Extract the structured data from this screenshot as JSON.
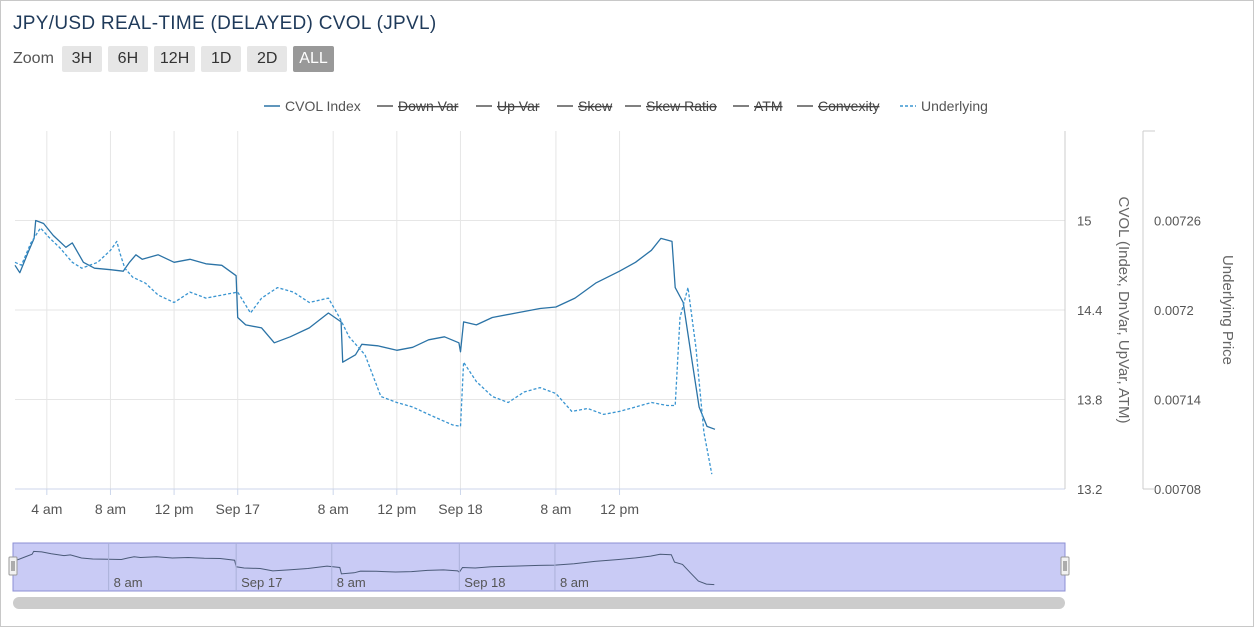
{
  "title": "JPY/USD REAL-TIME (DELAYED) CVOL (JPVL)",
  "zoom": {
    "label": "Zoom",
    "buttons": [
      "3H",
      "6H",
      "12H",
      "1D",
      "2D",
      "ALL"
    ],
    "selected": "ALL"
  },
  "colors": {
    "cvol": "#2b73a6",
    "underlying": "#3a95d1",
    "grid": "#e6e6e6",
    "navigator_fill": "#c9cbf5",
    "hidden_series": "#555555"
  },
  "chart_data": {
    "type": "line",
    "title": "JPY/USD REAL-TIME (DELAYED) CVOL (JPVL)",
    "x_unit": "hours",
    "x_range": [
      0,
      66
    ],
    "x_ticks": [
      {
        "x": 2,
        "label": "4 am"
      },
      {
        "x": 6,
        "label": "8 am"
      },
      {
        "x": 10,
        "label": "12 pm"
      },
      {
        "x": 14,
        "label": "Sep 17"
      },
      {
        "x": 20,
        "label": "8 am"
      },
      {
        "x": 24,
        "label": "12 pm"
      },
      {
        "x": 28,
        "label": "Sep 18"
      },
      {
        "x": 34,
        "label": "8 am"
      },
      {
        "x": 38,
        "label": "12 pm"
      }
    ],
    "y_left": {
      "label": "CVOL (Index, DnVar, UpVar, ATM)",
      "range": [
        13.2,
        15.6
      ],
      "ticks": [
        13.2,
        13.8,
        14.4,
        15
      ]
    },
    "y_right": {
      "label": "Underlying Price",
      "range": [
        0.00708,
        0.00732
      ],
      "ticks": [
        "0.00708",
        "0.00714",
        "0.0072",
        "0.00726"
      ]
    },
    "legend": {
      "placement": "top",
      "entries": [
        {
          "name": "CVOL Index",
          "visible": true,
          "dashed": false
        },
        {
          "name": "Down Var",
          "visible": false,
          "dashed": false
        },
        {
          "name": "Up Var",
          "visible": false,
          "dashed": false
        },
        {
          "name": "Skew",
          "visible": false,
          "dashed": false
        },
        {
          "name": "Skew Ratio",
          "visible": false,
          "dashed": false
        },
        {
          "name": "ATM",
          "visible": false,
          "dashed": false
        },
        {
          "name": "Convexity",
          "visible": false,
          "dashed": false
        },
        {
          "name": "Underlying",
          "visible": true,
          "dashed": true
        }
      ]
    },
    "series": [
      {
        "name": "CVOL Index",
        "axis": "left",
        "points": [
          [
            0,
            14.7
          ],
          [
            0.3,
            14.65
          ],
          [
            0.8,
            14.78
          ],
          [
            1.2,
            14.88
          ],
          [
            1.3,
            15.0
          ],
          [
            1.8,
            14.98
          ],
          [
            2.4,
            14.9
          ],
          [
            3.2,
            14.82
          ],
          [
            3.6,
            14.85
          ],
          [
            4.3,
            14.72
          ],
          [
            5,
            14.68
          ],
          [
            6,
            14.67
          ],
          [
            6.8,
            14.66
          ],
          [
            7.2,
            14.72
          ],
          [
            7.6,
            14.77
          ],
          [
            8,
            14.74
          ],
          [
            9,
            14.77
          ],
          [
            10,
            14.72
          ],
          [
            11,
            14.74
          ],
          [
            12,
            14.71
          ],
          [
            13,
            14.7
          ],
          [
            13.9,
            14.63
          ],
          [
            14,
            14.35
          ],
          [
            14.5,
            14.3
          ],
          [
            15.5,
            14.28
          ],
          [
            16.3,
            14.18
          ],
          [
            17.3,
            14.22
          ],
          [
            18.5,
            14.28
          ],
          [
            19.7,
            14.38
          ],
          [
            20.5,
            14.32
          ],
          [
            20.6,
            14.05
          ],
          [
            21.4,
            14.1
          ],
          [
            21.8,
            14.17
          ],
          [
            22.8,
            14.16
          ],
          [
            24,
            14.13
          ],
          [
            25,
            14.15
          ],
          [
            26,
            14.2
          ],
          [
            27,
            14.22
          ],
          [
            27.9,
            14.18
          ],
          [
            28,
            14.12
          ],
          [
            28.2,
            14.32
          ],
          [
            29,
            14.3
          ],
          [
            30,
            14.35
          ],
          [
            31.5,
            14.38
          ],
          [
            33,
            14.41
          ],
          [
            34,
            14.42
          ],
          [
            35.2,
            14.48
          ],
          [
            36.5,
            14.58
          ],
          [
            38,
            14.66
          ],
          [
            39,
            14.72
          ],
          [
            40,
            14.8
          ],
          [
            40.6,
            14.88
          ],
          [
            41.3,
            14.86
          ],
          [
            41.5,
            14.55
          ],
          [
            42,
            14.45
          ],
          [
            42.5,
            14.1
          ],
          [
            43,
            13.75
          ],
          [
            43.5,
            13.62
          ],
          [
            44,
            13.6
          ]
        ]
      },
      {
        "name": "Underlying",
        "axis": "right",
        "dashed": true,
        "points": [
          [
            0,
            0.007232
          ],
          [
            0.4,
            0.00723
          ],
          [
            1,
            0.007245
          ],
          [
            1.6,
            0.007255
          ],
          [
            2.2,
            0.007248
          ],
          [
            2.8,
            0.007242
          ],
          [
            3.6,
            0.007232
          ],
          [
            4.2,
            0.007228
          ],
          [
            5.2,
            0.007232
          ],
          [
            6,
            0.00724
          ],
          [
            6.4,
            0.007246
          ],
          [
            6.6,
            0.007238
          ],
          [
            6.9,
            0.007228
          ],
          [
            7.4,
            0.007222
          ],
          [
            8.2,
            0.007218
          ],
          [
            9,
            0.00721
          ],
          [
            10,
            0.007205
          ],
          [
            11,
            0.007212
          ],
          [
            12,
            0.007208
          ],
          [
            13,
            0.00721
          ],
          [
            14,
            0.007212
          ],
          [
            14.8,
            0.007198
          ],
          [
            15.5,
            0.007208
          ],
          [
            16.5,
            0.007215
          ],
          [
            17.5,
            0.007212
          ],
          [
            18.5,
            0.007205
          ],
          [
            19.7,
            0.007208
          ],
          [
            20.4,
            0.007195
          ],
          [
            21,
            0.007182
          ],
          [
            22,
            0.00717
          ],
          [
            23,
            0.007142
          ],
          [
            24,
            0.007138
          ],
          [
            25,
            0.007135
          ],
          [
            26,
            0.00713
          ],
          [
            27.5,
            0.007123
          ],
          [
            28,
            0.007122
          ],
          [
            28.2,
            0.007165
          ],
          [
            29,
            0.007152
          ],
          [
            30,
            0.007142
          ],
          [
            31,
            0.007138
          ],
          [
            32,
            0.007145
          ],
          [
            33,
            0.007148
          ],
          [
            34,
            0.007144
          ],
          [
            35,
            0.007132
          ],
          [
            36,
            0.007134
          ],
          [
            37,
            0.00713
          ],
          [
            38,
            0.007132
          ],
          [
            39,
            0.007135
          ],
          [
            40,
            0.007138
          ],
          [
            41,
            0.007136
          ],
          [
            41.5,
            0.007136
          ],
          [
            41.8,
            0.007195
          ],
          [
            42.3,
            0.007215
          ],
          [
            42.8,
            0.007175
          ],
          [
            43.3,
            0.007118
          ],
          [
            43.8,
            0.00709
          ]
        ]
      }
    ]
  },
  "navigator": {
    "labels": [
      "8 am",
      "Sep 17",
      "8 am",
      "Sep 18",
      "8 am"
    ]
  }
}
